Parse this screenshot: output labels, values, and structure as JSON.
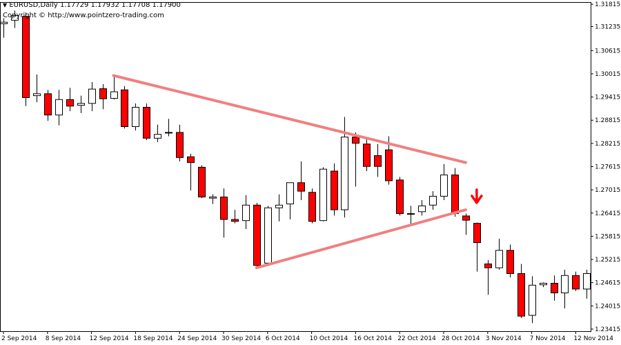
{
  "header": {
    "symbol_line": "EURUSD,Daily  1.17729 1.17932 1.17708 1.17900",
    "copyright": "Copyright © http://www.pointzero-trading.com"
  },
  "colors": {
    "bear_body": "#ff0000",
    "bull_body": "#ffffff",
    "outline": "#000000",
    "trendline": "#f08080",
    "arrow": "#ff0000"
  },
  "chart_data": {
    "type": "candlestick",
    "x_tick_labels": [
      "2 Sep 2014",
      "8 Sep 2014",
      "12 Sep 2014",
      "18 Sep 2014",
      "24 Sep 2014",
      "30 Sep 2014",
      "6 Oct 2014",
      "10 Oct 2014",
      "16 Oct 2014",
      "22 Oct 2014",
      "28 Oct 2014",
      "3 Nov 2014",
      "7 Nov 2014",
      "12 Nov 2014"
    ],
    "x_tick_index": [
      0,
      4,
      8,
      12,
      16,
      20,
      24,
      28,
      32,
      36,
      40,
      44,
      48,
      52
    ],
    "y_tick_labels": [
      "1.31815",
      "1.31235",
      "1.30615",
      "1.30015",
      "1.29415",
      "1.28815",
      "1.28215",
      "1.27615",
      "1.27015",
      "1.26415",
      "1.25815",
      "1.25215",
      "1.24615",
      "1.24015",
      "1.23415"
    ],
    "ylim": [
      1.2336,
      1.3187
    ],
    "candles": [
      {
        "o": 1.3131,
        "h": 1.3145,
        "l": 1.3095,
        "c": 1.3135
      },
      {
        "o": 1.314,
        "h": 1.3165,
        "l": 1.312,
        "c": 1.3152
      },
      {
        "o": 1.315,
        "h": 1.316,
        "l": 1.2918,
        "c": 1.294
      },
      {
        "o": 1.2945,
        "h": 1.3,
        "l": 1.2928,
        "c": 1.295
      },
      {
        "o": 1.295,
        "h": 1.296,
        "l": 1.288,
        "c": 1.2895
      },
      {
        "o": 1.2895,
        "h": 1.296,
        "l": 1.2868,
        "c": 1.2935
      },
      {
        "o": 1.2935,
        "h": 1.2965,
        "l": 1.2905,
        "c": 1.2918
      },
      {
        "o": 1.292,
        "h": 1.2945,
        "l": 1.29,
        "c": 1.2925
      },
      {
        "o": 1.2925,
        "h": 1.298,
        "l": 1.2905,
        "c": 1.2962
      },
      {
        "o": 1.2963,
        "h": 1.2975,
        "l": 1.291,
        "c": 1.2937
      },
      {
        "o": 1.2938,
        "h": 1.3,
        "l": 1.2935,
        "c": 1.2955
      },
      {
        "o": 1.296,
        "h": 1.297,
        "l": 1.286,
        "c": 1.2865
      },
      {
        "o": 1.2865,
        "h": 1.2925,
        "l": 1.2855,
        "c": 1.2915
      },
      {
        "o": 1.2915,
        "h": 1.2925,
        "l": 1.283,
        "c": 1.2835
      },
      {
        "o": 1.2835,
        "h": 1.287,
        "l": 1.2825,
        "c": 1.2845
      },
      {
        "o": 1.285,
        "h": 1.2885,
        "l": 1.284,
        "c": 1.285
      },
      {
        "o": 1.285,
        "h": 1.287,
        "l": 1.2775,
        "c": 1.2785
      },
      {
        "o": 1.2787,
        "h": 1.2795,
        "l": 1.27,
        "c": 1.2772
      },
      {
        "o": 1.276,
        "h": 1.2765,
        "l": 1.268,
        "c": 1.2683
      },
      {
        "o": 1.268,
        "h": 1.269,
        "l": 1.2665,
        "c": 1.2683
      },
      {
        "o": 1.2683,
        "h": 1.2705,
        "l": 1.2578,
        "c": 1.2625
      },
      {
        "o": 1.2625,
        "h": 1.265,
        "l": 1.2615,
        "c": 1.262
      },
      {
        "o": 1.2622,
        "h": 1.2688,
        "l": 1.26,
        "c": 1.2662
      },
      {
        "o": 1.2662,
        "h": 1.2668,
        "l": 1.25,
        "c": 1.2506
      },
      {
        "o": 1.2512,
        "h": 1.266,
        "l": 1.2505,
        "c": 1.2655
      },
      {
        "o": 1.2655,
        "h": 1.269,
        "l": 1.262,
        "c": 1.2662
      },
      {
        "o": 1.2665,
        "h": 1.272,
        "l": 1.2625,
        "c": 1.272
      },
      {
        "o": 1.272,
        "h": 1.2775,
        "l": 1.2675,
        "c": 1.2698
      },
      {
        "o": 1.2695,
        "h": 1.2705,
        "l": 1.2615,
        "c": 1.262
      },
      {
        "o": 1.2622,
        "h": 1.276,
        "l": 1.262,
        "c": 1.2755
      },
      {
        "o": 1.275,
        "h": 1.277,
        "l": 1.2635,
        "c": 1.265
      },
      {
        "o": 1.265,
        "h": 1.289,
        "l": 1.263,
        "c": 1.2838
      },
      {
        "o": 1.2838,
        "h": 1.285,
        "l": 1.271,
        "c": 1.2822
      },
      {
        "o": 1.282,
        "h": 1.2835,
        "l": 1.275,
        "c": 1.2762
      },
      {
        "o": 1.279,
        "h": 1.282,
        "l": 1.2735,
        "c": 1.2762
      },
      {
        "o": 1.2805,
        "h": 1.284,
        "l": 1.2715,
        "c": 1.2725
      },
      {
        "o": 1.2727,
        "h": 1.2735,
        "l": 1.2635,
        "c": 1.264
      },
      {
        "o": 1.264,
        "h": 1.266,
        "l": 1.2608,
        "c": 1.264
      },
      {
        "o": 1.2645,
        "h": 1.2675,
        "l": 1.2635,
        "c": 1.266
      },
      {
        "o": 1.2662,
        "h": 1.2698,
        "l": 1.265,
        "c": 1.2685
      },
      {
        "o": 1.2685,
        "h": 1.2768,
        "l": 1.2675,
        "c": 1.274
      },
      {
        "o": 1.274,
        "h": 1.2758,
        "l": 1.2632,
        "c": 1.264
      },
      {
        "o": 1.2634,
        "h": 1.264,
        "l": 1.2585,
        "c": 1.2623
      },
      {
        "o": 1.2615,
        "h": 1.2617,
        "l": 1.249,
        "c": 1.2565
      },
      {
        "o": 1.251,
        "h": 1.252,
        "l": 1.243,
        "c": 1.25
      },
      {
        "o": 1.25,
        "h": 1.2575,
        "l": 1.2495,
        "c": 1.2545
      },
      {
        "o": 1.2545,
        "h": 1.256,
        "l": 1.2475,
        "c": 1.2485
      },
      {
        "o": 1.2485,
        "h": 1.251,
        "l": 1.237,
        "c": 1.2375
      },
      {
        "o": 1.2377,
        "h": 1.2478,
        "l": 1.2357,
        "c": 1.2455
      },
      {
        "o": 1.2456,
        "h": 1.2462,
        "l": 1.245,
        "c": 1.246
      },
      {
        "o": 1.246,
        "h": 1.248,
        "l": 1.2415,
        "c": 1.2435
      },
      {
        "o": 1.2435,
        "h": 1.2495,
        "l": 1.2395,
        "c": 1.248
      },
      {
        "o": 1.248,
        "h": 1.249,
        "l": 1.244,
        "c": 1.2445
      },
      {
        "o": 1.2445,
        "h": 1.2495,
        "l": 1.242,
        "c": 1.2485
      }
    ],
    "trendlines": [
      {
        "from": {
          "i": 10,
          "price": 1.2997
        },
        "to": {
          "i": 42,
          "price": 1.2772
        }
      },
      {
        "from": {
          "i": 23,
          "price": 1.25
        },
        "to": {
          "i": 42,
          "price": 1.265
        }
      }
    ],
    "arrow_marker": {
      "i": 43,
      "price": 1.2668,
      "direction": "down"
    }
  }
}
